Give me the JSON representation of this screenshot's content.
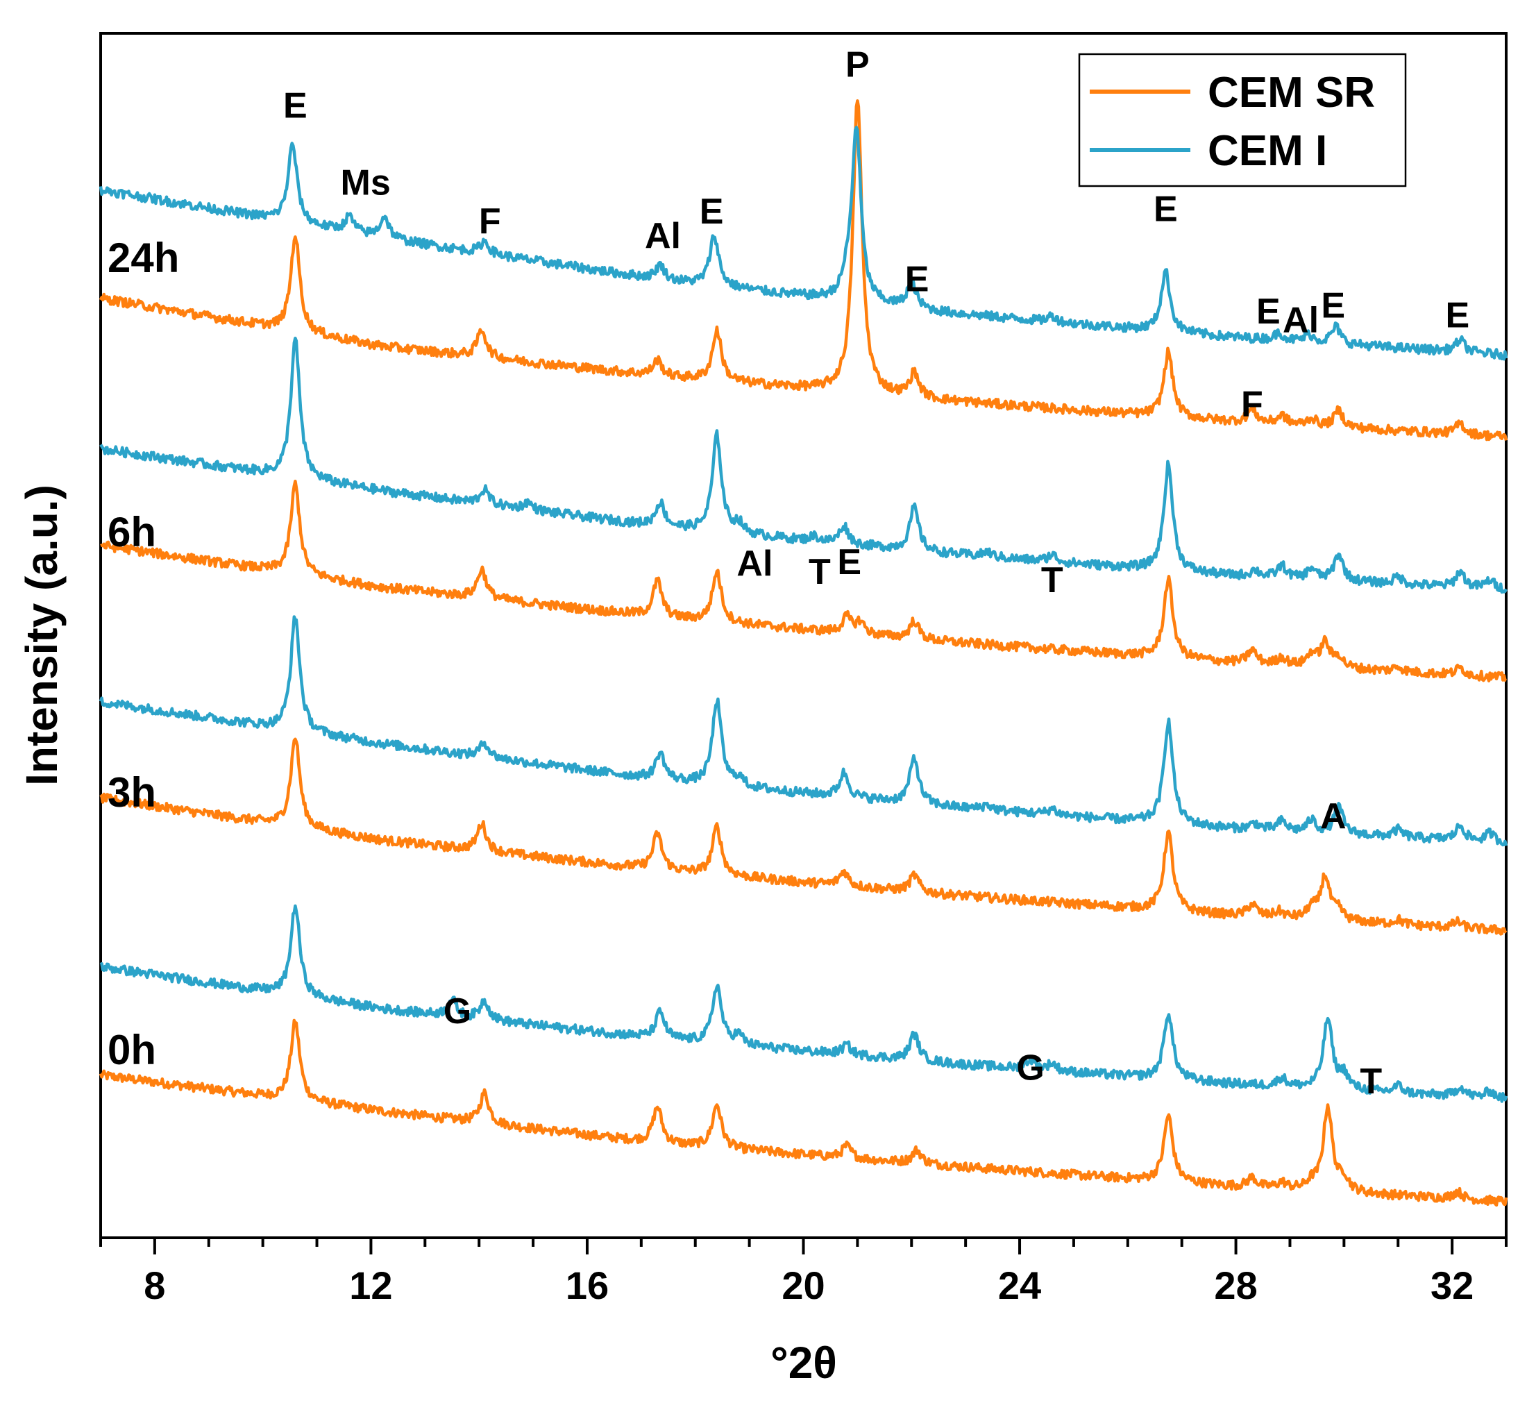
{
  "chart_data": {
    "type": "line",
    "title": "",
    "xlabel": "°2θ",
    "ylabel": "Intensity (a.u.)",
    "xlim": [
      7,
      33
    ],
    "xticks": [
      8,
      12,
      16,
      20,
      24,
      28,
      32
    ],
    "ylim": [
      0,
      100
    ],
    "grid": false,
    "legend_position": "top-right",
    "colors": {
      "CEM SR": "#ff7f0e",
      "CEM I": "#2ba3c9"
    },
    "legend": [
      {
        "name": "CEM SR",
        "color": "#ff7f0e"
      },
      {
        "name": "CEM I",
        "color": "#2ba3c9"
      }
    ],
    "time_labels": [
      "24h",
      "6h",
      "3h",
      "0h"
    ],
    "series": [
      {
        "name": "CEM SR",
        "time": "0h",
        "offset": 2.0,
        "baseline": [
          11.5,
          8.5,
          5.8,
          4.0,
          2.3,
          1.0
        ],
        "peaks": [
          [
            10.6,
            6.5
          ],
          [
            14.1,
            2.5
          ],
          [
            17.3,
            3.0
          ],
          [
            18.4,
            3.6
          ],
          [
            20.8,
            1.0
          ],
          [
            22.1,
            1.1
          ],
          [
            26.75,
            5.5
          ],
          [
            28.3,
            0.8
          ],
          [
            28.85,
            0.5
          ],
          [
            29.4,
            0.6
          ],
          [
            29.7,
            7.0
          ],
          [
            30.0,
            1.1
          ],
          [
            32.1,
            0.6
          ]
        ]
      },
      {
        "name": "CEM I",
        "time": "0h",
        "offset": 9.0,
        "baseline": [
          13.5,
          10.0,
          7.5,
          5.5,
          3.8,
          2.5
        ],
        "peaks": [
          [
            10.6,
            7.5
          ],
          [
            13.5,
            1.4
          ],
          [
            14.1,
            1.6
          ],
          [
            17.35,
            2.2
          ],
          [
            18.4,
            4.8
          ],
          [
            18.8,
            0.8
          ],
          [
            20.8,
            0.8
          ],
          [
            22.05,
            2.2
          ],
          [
            24.2,
            0.8
          ],
          [
            24.6,
            0.6
          ],
          [
            26.75,
            5.5
          ],
          [
            28.85,
            0.7
          ],
          [
            29.7,
            5.8
          ],
          [
            30.0,
            1.2
          ],
          [
            31.0,
            0.6
          ],
          [
            32.15,
            0.8
          ],
          [
            32.7,
            0.6
          ]
        ]
      },
      {
        "name": "CEM SR",
        "time": "3h",
        "offset": 23.0,
        "baseline": [
          13.5,
          10.0,
          7.5,
          5.5,
          3.8,
          2.5
        ],
        "peaks": [
          [
            10.6,
            7.5
          ],
          [
            14.05,
            2.3
          ],
          [
            17.3,
            3.0
          ],
          [
            18.4,
            4.0
          ],
          [
            20.75,
            1.2
          ],
          [
            22.05,
            1.4
          ],
          [
            26.75,
            6.5
          ],
          [
            28.3,
            1.0
          ],
          [
            28.8,
            0.5
          ],
          [
            29.4,
            0.9
          ],
          [
            29.65,
            3.6
          ],
          [
            29.9,
            0.8
          ],
          [
            31.0,
            0.4
          ],
          [
            32.1,
            0.5
          ]
        ]
      },
      {
        "name": "CEM I",
        "time": "3h",
        "offset": 30.0,
        "baseline": [
          14.5,
          11.0,
          8.0,
          5.8,
          4.0,
          2.8
        ],
        "peaks": [
          [
            10.6,
            9.5
          ],
          [
            14.1,
            1.2
          ],
          [
            17.35,
            2.2
          ],
          [
            18.4,
            7.0
          ],
          [
            18.8,
            0.7
          ],
          [
            20.75,
            2.0
          ],
          [
            22.05,
            3.8
          ],
          [
            23.4,
            0.4
          ],
          [
            24.6,
            0.5
          ],
          [
            26.75,
            8.5
          ],
          [
            28.35,
            0.5
          ],
          [
            28.85,
            0.8
          ],
          [
            29.4,
            1.0
          ],
          [
            29.9,
            2.2
          ],
          [
            31.0,
            0.6
          ],
          [
            32.15,
            1.2
          ],
          [
            32.7,
            0.7
          ]
        ]
      },
      {
        "name": "CEM SR",
        "time": "6h",
        "offset": 44.0,
        "baseline": [
          13.5,
          10.0,
          7.5,
          5.5,
          3.8,
          2.5
        ],
        "peaks": [
          [
            10.6,
            7.5
          ],
          [
            14.05,
            2.4
          ],
          [
            17.3,
            3.0
          ],
          [
            18.4,
            4.2
          ],
          [
            20.8,
            1.3
          ],
          [
            21.05,
            1.0
          ],
          [
            22.05,
            1.5
          ],
          [
            26.75,
            6.5
          ],
          [
            28.3,
            1.1
          ],
          [
            28.85,
            0.6
          ],
          [
            29.4,
            1.0
          ],
          [
            29.65,
            2.0
          ],
          [
            29.9,
            0.9
          ],
          [
            31.0,
            0.4
          ],
          [
            32.15,
            0.6
          ]
        ]
      },
      {
        "name": "CEM I",
        "time": "6h",
        "offset": 51.0,
        "baseline": [
          14.5,
          11.0,
          8.0,
          5.8,
          4.0,
          2.8
        ],
        "peaks": [
          [
            10.6,
            11.5
          ],
          [
            14.1,
            1.2
          ],
          [
            14.9,
            0.6
          ],
          [
            17.35,
            2.0
          ],
          [
            18.4,
            8.0
          ],
          [
            18.8,
            0.8
          ],
          [
            20.2,
            0.4
          ],
          [
            20.75,
            1.5
          ],
          [
            22.05,
            3.6
          ],
          [
            23.4,
            0.4
          ],
          [
            24.6,
            0.6
          ],
          [
            26.75,
            8.8
          ],
          [
            28.35,
            0.5
          ],
          [
            28.85,
            1.0
          ],
          [
            29.4,
            0.9
          ],
          [
            29.9,
            2.2
          ],
          [
            31.0,
            0.6
          ],
          [
            32.15,
            1.3
          ],
          [
            32.7,
            0.7
          ]
        ]
      },
      {
        "name": "CEM SR",
        "time": "24h",
        "offset": 64.0,
        "baseline": [
          14.0,
          10.0,
          7.5,
          5.5,
          3.8,
          2.5
        ],
        "peaks": [
          [
            10.6,
            8.0
          ],
          [
            14.05,
            2.3
          ],
          [
            17.3,
            1.3
          ],
          [
            18.4,
            4.2
          ],
          [
            21.0,
            24.5
          ],
          [
            22.05,
            2.0
          ],
          [
            26.75,
            5.4
          ],
          [
            28.3,
            1.1
          ],
          [
            28.85,
            0.7
          ],
          [
            29.4,
            0.6
          ],
          [
            29.9,
            1.4
          ],
          [
            32.15,
            0.9
          ]
        ]
      },
      {
        "name": "CEM I",
        "time": "24h",
        "offset": 70.0,
        "baseline": [
          17.0,
          13.0,
          9.5,
          6.8,
          4.8,
          3.3
        ],
        "peaks": [
          [
            10.55,
            6.5
          ],
          [
            11.6,
            1.3
          ],
          [
            12.25,
            1.8
          ],
          [
            14.1,
            1.0
          ],
          [
            17.35,
            1.2
          ],
          [
            18.35,
            4.2
          ],
          [
            20.8,
            1.2
          ],
          [
            20.98,
            14.5
          ],
          [
            22.0,
            2.2
          ],
          [
            24.6,
            0.5
          ],
          [
            26.7,
            5.0
          ],
          [
            28.8,
            0.6
          ],
          [
            29.35,
            0.6
          ],
          [
            29.85,
            1.4
          ],
          [
            32.15,
            1.0
          ]
        ]
      }
    ],
    "annotations": [
      {
        "text": "E",
        "x": 10.6,
        "y": 93.0
      },
      {
        "text": "Ms",
        "x": 11.9,
        "y": 86.6
      },
      {
        "text": "F",
        "x": 14.2,
        "y": 83.4
      },
      {
        "text": "Al",
        "x": 17.4,
        "y": 82.2
      },
      {
        "text": "E",
        "x": 18.3,
        "y": 84.2
      },
      {
        "text": "P",
        "x": 21.0,
        "y": 96.4
      },
      {
        "text": "E",
        "x": 22.1,
        "y": 78.6
      },
      {
        "text": "E",
        "x": 26.7,
        "y": 84.4
      },
      {
        "text": "E",
        "x": 28.6,
        "y": 75.9
      },
      {
        "text": "Al",
        "x": 29.2,
        "y": 75.2
      },
      {
        "text": "E",
        "x": 29.8,
        "y": 76.4
      },
      {
        "text": "E",
        "x": 32.1,
        "y": 75.6
      },
      {
        "text": "F",
        "x": 28.3,
        "y": 68.2
      },
      {
        "text": "Al",
        "x": 19.1,
        "y": 55.0
      },
      {
        "text": "T",
        "x": 20.3,
        "y": 54.3
      },
      {
        "text": "E",
        "x": 20.85,
        "y": 55.1
      },
      {
        "text": "T",
        "x": 24.6,
        "y": 53.6
      },
      {
        "text": "A",
        "x": 29.8,
        "y": 34.0
      },
      {
        "text": "G",
        "x": 13.6,
        "y": 17.8
      },
      {
        "text": "G",
        "x": 24.2,
        "y": 13.1
      },
      {
        "text": "T",
        "x": 30.5,
        "y": 12.0
      }
    ]
  }
}
